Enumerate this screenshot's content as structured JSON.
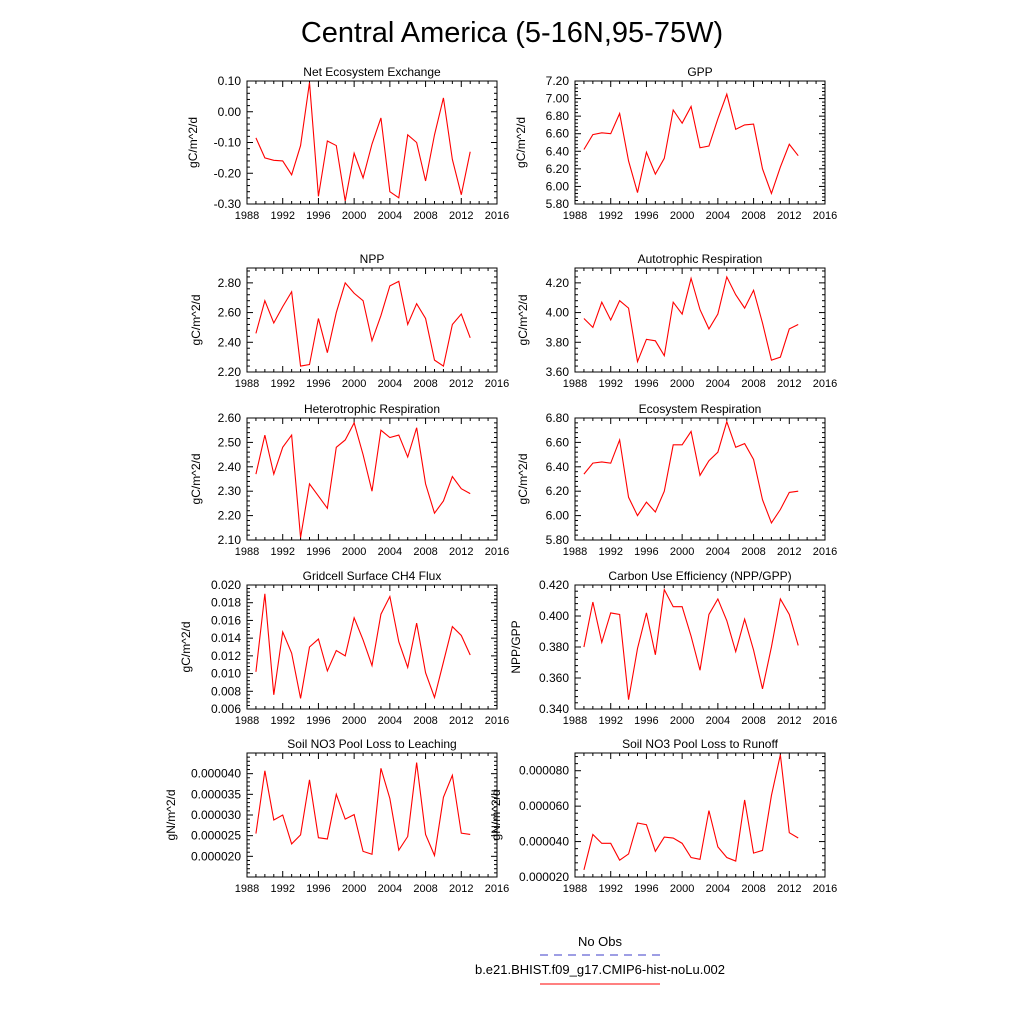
{
  "title": "Central America (5-16N,95-75W)",
  "years": [
    1989,
    1990,
    1991,
    1992,
    1993,
    1994,
    1995,
    1996,
    1997,
    1998,
    1999,
    2000,
    2001,
    2002,
    2003,
    2004,
    2005,
    2006,
    2007,
    2008,
    2009,
    2010,
    2011,
    2012,
    2013
  ],
  "x_ticks": [
    "1988",
    "1992",
    "1996",
    "2000",
    "2004",
    "2008",
    "2012",
    "2016"
  ],
  "colors": {
    "series": "#ff0000",
    "obs": "#3c3cc8"
  },
  "legend": {
    "obs_label": "No Obs",
    "model_label": "b.e21.BHIST.f09_g17.CMIP6-hist-noLu.002"
  },
  "chart_data": [
    {
      "type": "line",
      "title": "Net Ecosystem Exchange",
      "ylabel": "gC/m^2/d",
      "xlim": [
        1988,
        2016
      ],
      "ylim": [
        -0.3,
        0.1
      ],
      "yticks": [
        "-0.30",
        "-0.20",
        "-0.10",
        "0.00",
        "0.10"
      ],
      "values": [
        -0.085,
        -0.15,
        -0.158,
        -0.16,
        -0.205,
        -0.11,
        0.095,
        -0.275,
        -0.095,
        -0.11,
        -0.29,
        -0.135,
        -0.215,
        -0.105,
        -0.02,
        -0.26,
        -0.28,
        -0.075,
        -0.1,
        -0.225,
        -0.075,
        0.045,
        -0.155,
        -0.27,
        -0.13
      ]
    },
    {
      "type": "line",
      "title": "GPP",
      "ylabel": "gC/m^2/d",
      "xlim": [
        1988,
        2016
      ],
      "ylim": [
        5.8,
        7.2
      ],
      "yticks": [
        "5.80",
        "6.00",
        "6.20",
        "6.40",
        "6.60",
        "6.80",
        "7.00",
        "7.20"
      ],
      "values": [
        6.42,
        6.59,
        6.61,
        6.6,
        6.83,
        6.29,
        5.93,
        6.39,
        6.14,
        6.32,
        6.87,
        6.72,
        6.91,
        6.44,
        6.46,
        6.77,
        7.05,
        6.65,
        6.7,
        6.71,
        6.2,
        5.92,
        6.22,
        6.48,
        6.35
      ]
    },
    {
      "type": "line",
      "title": "NPP",
      "ylabel": "gC/m^2/d",
      "xlim": [
        1988,
        2016
      ],
      "ylim": [
        2.2,
        2.9
      ],
      "yticks": [
        "2.20",
        "2.40",
        "2.60",
        "2.80"
      ],
      "values": [
        2.46,
        2.68,
        2.53,
        2.64,
        2.74,
        2.24,
        2.25,
        2.56,
        2.33,
        2.6,
        2.8,
        2.73,
        2.68,
        2.41,
        2.58,
        2.78,
        2.81,
        2.52,
        2.66,
        2.56,
        2.28,
        2.24,
        2.52,
        2.59,
        2.43
      ]
    },
    {
      "type": "line",
      "title": "Autotrophic Respiration",
      "ylabel": "gC/m^2/d",
      "xlim": [
        1988,
        2016
      ],
      "ylim": [
        3.6,
        4.3
      ],
      "yticks": [
        "3.60",
        "3.80",
        "4.00",
        "4.20"
      ],
      "values": [
        3.96,
        3.9,
        4.07,
        3.95,
        4.08,
        4.03,
        3.67,
        3.82,
        3.81,
        3.71,
        4.07,
        3.99,
        4.23,
        4.02,
        3.89,
        3.99,
        4.24,
        4.12,
        4.03,
        4.15,
        3.93,
        3.68,
        3.7,
        3.89,
        3.92
      ]
    },
    {
      "type": "line",
      "title": "Heterotrophic Respiration",
      "ylabel": "gC/m^2/d",
      "xlim": [
        1988,
        2016
      ],
      "ylim": [
        2.1,
        2.6
      ],
      "yticks": [
        "2.10",
        "2.20",
        "2.30",
        "2.40",
        "2.50",
        "2.60"
      ],
      "values": [
        2.37,
        2.53,
        2.37,
        2.48,
        2.53,
        2.11,
        2.33,
        2.28,
        2.23,
        2.48,
        2.51,
        2.58,
        2.45,
        2.3,
        2.55,
        2.52,
        2.53,
        2.44,
        2.56,
        2.33,
        2.21,
        2.26,
        2.36,
        2.31,
        2.29
      ]
    },
    {
      "type": "line",
      "title": "Ecosystem Respiration",
      "ylabel": "gC/m^2/d",
      "xlim": [
        1988,
        2016
      ],
      "ylim": [
        5.8,
        6.8
      ],
      "yticks": [
        "5.80",
        "6.00",
        "6.20",
        "6.40",
        "6.60",
        "6.80"
      ],
      "values": [
        6.34,
        6.43,
        6.44,
        6.43,
        6.62,
        6.15,
        6.0,
        6.11,
        6.03,
        6.2,
        6.58,
        6.58,
        6.69,
        6.33,
        6.45,
        6.52,
        6.77,
        6.56,
        6.59,
        6.46,
        6.13,
        5.94,
        6.05,
        6.19,
        6.2
      ]
    },
    {
      "type": "line",
      "title": "Gridcell Surface CH4 Flux",
      "ylabel": "gC/m^2/d",
      "xlim": [
        1988,
        2016
      ],
      "ylim": [
        0.006,
        0.02
      ],
      "yticks": [
        "0.006",
        "0.008",
        "0.010",
        "0.012",
        "0.014",
        "0.016",
        "0.018",
        "0.020"
      ],
      "values": [
        0.0102,
        0.019,
        0.0076,
        0.0147,
        0.0123,
        0.0072,
        0.013,
        0.0139,
        0.0103,
        0.0126,
        0.012,
        0.0163,
        0.0138,
        0.0109,
        0.0167,
        0.0187,
        0.0136,
        0.0107,
        0.0157,
        0.0101,
        0.0073,
        0.0113,
        0.0153,
        0.0143,
        0.0121
      ]
    },
    {
      "type": "line",
      "title": "Carbon Use Efficiency (NPP/GPP)",
      "ylabel": "NPP/GPP",
      "xlim": [
        1988,
        2016
      ],
      "ylim": [
        0.34,
        0.42
      ],
      "yticks": [
        "0.340",
        "0.360",
        "0.380",
        "0.400",
        "0.420"
      ],
      "values": [
        0.38,
        0.409,
        0.383,
        0.402,
        0.401,
        0.346,
        0.379,
        0.402,
        0.375,
        0.417,
        0.406,
        0.406,
        0.387,
        0.365,
        0.401,
        0.411,
        0.397,
        0.377,
        0.398,
        0.378,
        0.353,
        0.38,
        0.411,
        0.401,
        0.381
      ]
    },
    {
      "type": "line",
      "title": "Soil NO3 Pool Loss to Leaching",
      "ylabel": "gN/m^2/d",
      "xlim": [
        1988,
        2016
      ],
      "ylim": [
        1.5e-05,
        4.5e-05
      ],
      "yticks": [
        "0.000020",
        "0.000025",
        "0.000030",
        "0.000035",
        "0.000040"
      ],
      "values": [
        2.55e-05,
        4.07e-05,
        2.88e-05,
        3e-05,
        2.3e-05,
        2.52e-05,
        3.85e-05,
        2.45e-05,
        2.42e-05,
        3.5e-05,
        2.9e-05,
        3.01e-05,
        2.12e-05,
        2.05e-05,
        4.13e-05,
        3.4e-05,
        2.15e-05,
        2.48e-05,
        4.27e-05,
        2.53e-05,
        2.02e-05,
        3.43e-05,
        3.96e-05,
        2.56e-05,
        2.53e-05
      ]
    },
    {
      "type": "line",
      "title": "Soil NO3 Pool Loss to Runoff",
      "ylabel": "gN/m^2/d",
      "xlim": [
        1988,
        2016
      ],
      "ylim": [
        2e-05,
        9e-05
      ],
      "yticks": [
        "0.000020",
        "0.000040",
        "0.000060",
        "0.000080"
      ],
      "values": [
        2.4e-05,
        4.4e-05,
        3.9e-05,
        3.9e-05,
        2.95e-05,
        3.3e-05,
        5.05e-05,
        4.95e-05,
        3.45e-05,
        4.25e-05,
        4.2e-05,
        3.9e-05,
        3.1e-05,
        3e-05,
        5.75e-05,
        3.7e-05,
        3.1e-05,
        2.9e-05,
        6.35e-05,
        3.35e-05,
        3.5e-05,
        6.6e-05,
        8.9e-05,
        4.5e-05,
        4.2e-05
      ]
    }
  ]
}
